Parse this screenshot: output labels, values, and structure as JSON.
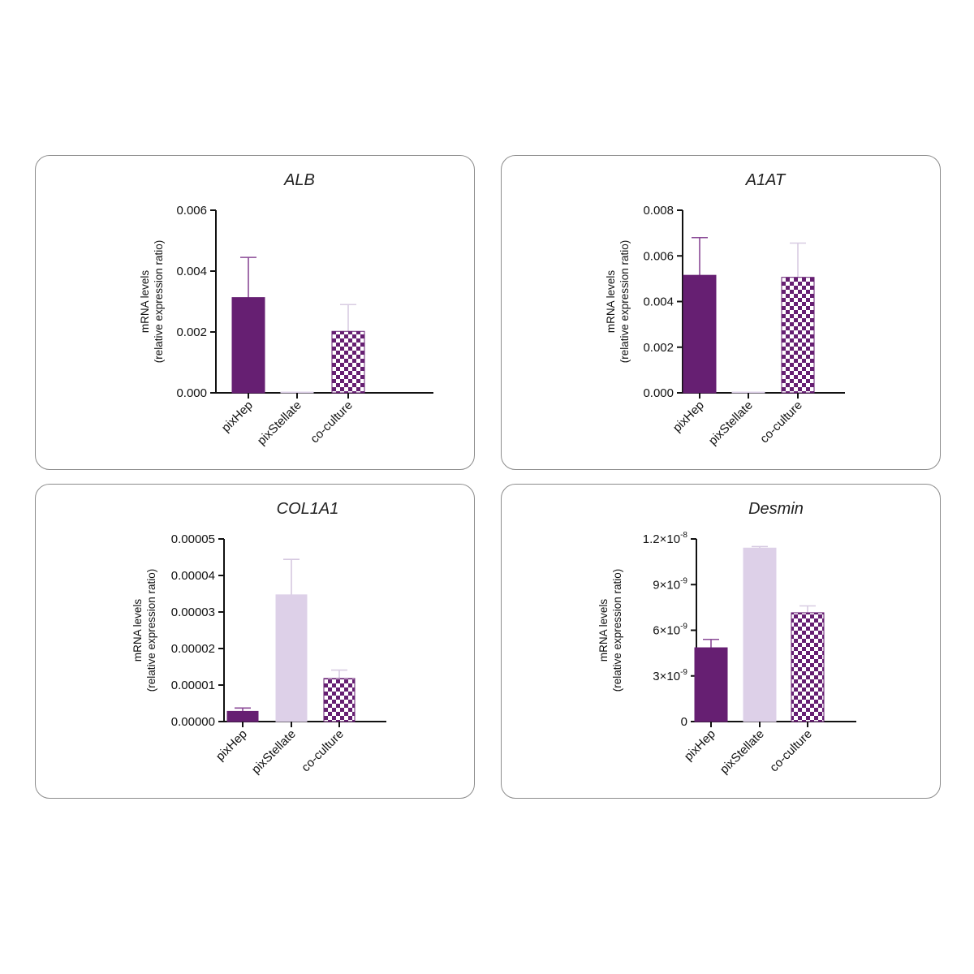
{
  "colors": {
    "pixHep": "#661f72",
    "pixStellate": "#ddd0e8",
    "check_dark": "#661f72",
    "check_light": "#ffffff",
    "error_pixHep": "#8a4a96",
    "error_pixStellate": "#d5c8e0",
    "error_coculture": "#d8cce2",
    "panel_border": "#8c8c8c",
    "axis": "#111111"
  },
  "chart_data": [
    {
      "type": "bar",
      "title": "ALB",
      "ylabel": [
        "mRNA levels",
        "(relative expression ratio)"
      ],
      "categories": [
        "pixHep",
        "pixStellate",
        "co-culture"
      ],
      "values": [
        0.00313,
        0.0,
        0.00202
      ],
      "errors": [
        0.00132,
        0.0,
        0.00088
      ],
      "ylim": [
        0,
        0.006
      ],
      "yticks": [
        0,
        0.002,
        0.004,
        0.006
      ],
      "yticklabels": [
        "0.000",
        "0.002",
        "0.004",
        "0.006"
      ]
    },
    {
      "type": "bar",
      "title": "A1AT",
      "ylabel": [
        "mRNA levels",
        "(relative expression ratio)"
      ],
      "categories": [
        "pixHep",
        "pixStellate",
        "co-culture"
      ],
      "values": [
        0.00515,
        2e-05,
        0.00506
      ],
      "errors": [
        0.00165,
        0.0,
        0.0015
      ],
      "ylim": [
        0,
        0.008
      ],
      "yticks": [
        0,
        0.002,
        0.004,
        0.006,
        0.008
      ],
      "yticklabels": [
        "0.000",
        "0.002",
        "0.004",
        "0.006",
        "0.008"
      ]
    },
    {
      "type": "bar",
      "title": "COL1A1",
      "ylabel": [
        "mRNA levels",
        "(relative expression ratio)"
      ],
      "categories": [
        "pixHep",
        "pixStellate",
        "co-culture"
      ],
      "values": [
        2.8e-06,
        3.47e-05,
        1.18e-05
      ],
      "errors": [
        9e-07,
        9.7e-06,
        2.3e-06
      ],
      "ylim": [
        0,
        5e-05
      ],
      "yticks": [
        0,
        1e-05,
        2e-05,
        3e-05,
        4e-05,
        5e-05
      ],
      "yticklabels": [
        "0.00000",
        "0.00001",
        "0.00002",
        "0.00003",
        "0.00004",
        "0.00005"
      ]
    },
    {
      "type": "bar",
      "title": "Desmin",
      "ylabel": [
        "mRNA levels",
        "(relative expression ratio)"
      ],
      "categories": [
        "pixHep",
        "pixStellate",
        "co-culture"
      ],
      "values": [
        4.85e-09,
        1.14e-08,
        7.15e-09
      ],
      "errors": [
        5.5e-10,
        1e-10,
        4.5e-10
      ],
      "ylim": [
        0,
        1.2e-08
      ],
      "yticks": [
        0,
        3e-09,
        6e-09,
        9e-09,
        1.2e-08
      ],
      "yticklabels": [
        {
          "base": "0",
          "exp": ""
        },
        {
          "base": "3×10",
          "exp": "-9"
        },
        {
          "base": "6×10",
          "exp": "-9"
        },
        {
          "base": "9×10",
          "exp": "-9"
        },
        {
          "base": "1.2×10",
          "exp": "-8"
        }
      ]
    }
  ]
}
